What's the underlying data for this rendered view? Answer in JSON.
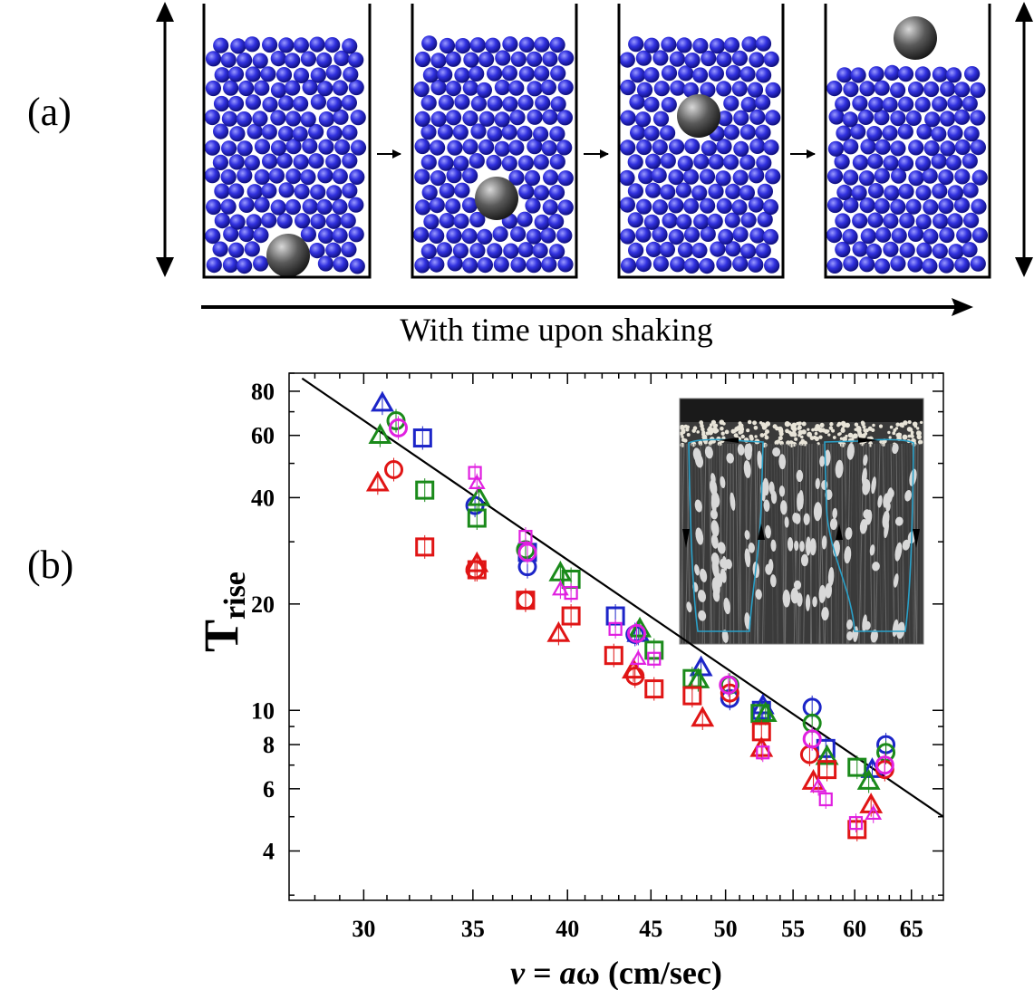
{
  "panel_a": {
    "label": "(a)",
    "caption": "With time upon shaking",
    "frames": [
      {
        "name": "frame-1",
        "intruder_position": "bottom"
      },
      {
        "name": "frame-2",
        "intruder_position": "lower-middle"
      },
      {
        "name": "frame-3",
        "intruder_position": "upper-middle"
      },
      {
        "name": "frame-4",
        "intruder_position": "top"
      }
    ],
    "colors": {
      "grains": "#2b2bd6",
      "intruder": "#555555"
    }
  },
  "panel_b": {
    "label": "(b)"
  },
  "chart_data": {
    "type": "scatter",
    "xscale": "log",
    "yscale": "log",
    "xlim": [
      27,
      68
    ],
    "ylim": [
      2.9,
      90
    ],
    "xticks": [
      30,
      35,
      40,
      45,
      50,
      55,
      60,
      65
    ],
    "yticks": [
      4,
      6,
      8,
      10,
      20,
      40,
      60,
      80
    ],
    "xlabel_parts": [
      "v",
      " = ",
      "a",
      "ω (cm/sec)"
    ],
    "ylabel": "T",
    "ylabel_sub": "rise",
    "fit_line": {
      "x": [
        27.5,
        68
      ],
      "y": [
        87,
        5.0
      ]
    },
    "inset": {
      "description": "convection-roll photograph",
      "line_color": "#2aa0c8"
    },
    "series": [
      {
        "name": "blue-triangle",
        "color": "#1c25c8",
        "marker": "triangle",
        "x": [
          30.8,
          44.2,
          48.3,
          52.7,
          61.5
        ],
        "y": [
          74,
          16.5,
          13.2,
          10.3,
          6.8
        ]
      },
      {
        "name": "blue-circle",
        "color": "#1c25c8",
        "marker": "circle",
        "x": [
          35.1,
          37.8,
          44.0,
          50.3,
          56.5,
          62.7
        ],
        "y": [
          38,
          25.5,
          16.4,
          10.8,
          10.2,
          8.0
        ]
      },
      {
        "name": "blue-square",
        "color": "#1c25c8",
        "marker": "square",
        "x": [
          32.6,
          37.8,
          42.8,
          52.6,
          57.6
        ],
        "y": [
          59,
          28,
          18.5,
          10.0,
          7.8
        ]
      },
      {
        "name": "green-triangle",
        "color": "#1a8a1a",
        "marker": "triangle",
        "x": [
          30.7,
          35.3,
          39.6,
          44.3,
          48.1,
          52.9,
          57.7,
          61.2
        ],
        "y": [
          60,
          40,
          24.5,
          17,
          12.2,
          9.8,
          7.4,
          6.3
        ]
      },
      {
        "name": "green-circle",
        "color": "#1a8a1a",
        "marker": "circle",
        "x": [
          31.4,
          37.7,
          50.3,
          56.5,
          62.7
        ],
        "y": [
          66,
          28.5,
          11.8,
          9.2,
          7.6
        ]
      },
      {
        "name": "green-square",
        "color": "#1a8a1a",
        "marker": "square",
        "x": [
          32.7,
          35.2,
          40.2,
          45.2,
          47.7,
          52.5,
          60.2
        ],
        "y": [
          42,
          35,
          23.5,
          14.8,
          12.3,
          9.8,
          6.9
        ]
      },
      {
        "name": "red-triangle",
        "color": "#e01515",
        "marker": "triangle",
        "x": [
          30.6,
          35.2,
          39.5,
          43.9,
          48.4,
          52.6,
          56.6,
          61.4
        ],
        "y": [
          44,
          26,
          16.5,
          13.0,
          9.5,
          7.8,
          6.3,
          5.4
        ]
      },
      {
        "name": "red-circle",
        "color": "#e01515",
        "marker": "circle",
        "x": [
          31.3,
          35.1,
          37.7,
          44.0,
          50.3,
          56.3,
          62.6
        ],
        "y": [
          48,
          25,
          20.5,
          12.5,
          11.2,
          7.5,
          6.8
        ]
      },
      {
        "name": "red-square",
        "color": "#e01515",
        "marker": "square",
        "x": [
          32.7,
          35.2,
          37.7,
          40.2,
          42.7,
          45.2,
          47.7,
          52.6,
          57.7,
          60.2
        ],
        "y": [
          29,
          25,
          20.5,
          18.5,
          14.3,
          11.5,
          11.0,
          8.7,
          6.8,
          4.6
        ]
      },
      {
        "name": "magenta-triangle",
        "color": "#e020e0",
        "marker": "triangle",
        "x": [
          35.2,
          39.6,
          44.2,
          57.0,
          61.6
        ],
        "y": [
          44,
          22,
          14,
          6.1,
          5.1
        ]
      },
      {
        "name": "magenta-circle",
        "color": "#e020e0",
        "marker": "circle",
        "x": [
          31.5,
          37.8,
          44.1,
          50.2,
          56.5,
          62.6
        ],
        "y": [
          63,
          28,
          16.5,
          11.8,
          8.3,
          7.0
        ]
      },
      {
        "name": "magenta-square",
        "color": "#e020e0",
        "marker": "square",
        "x": [
          35.1,
          37.7,
          40.2,
          42.8,
          45.2,
          52.7,
          57.6,
          60.1
        ],
        "y": [
          47,
          31,
          21.5,
          17.0,
          14.0,
          7.6,
          5.6,
          4.8
        ]
      }
    ]
  }
}
